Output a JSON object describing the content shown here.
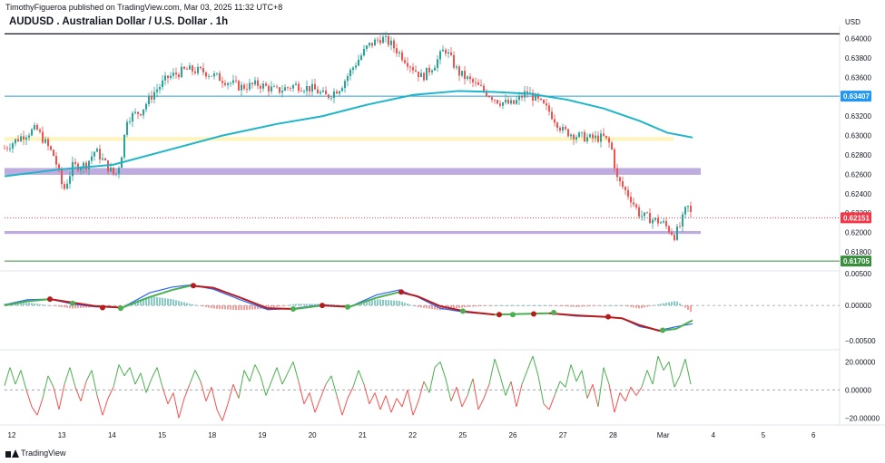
{
  "header": {
    "published_by": "TimothyFigueroa published on TradingView.com, Mar 03, 2025 11:32 UTC+8"
  },
  "title": "AUDUSD . Australian Dollar / U.S. Dollar . 1h",
  "currency_label": "USD",
  "footer": {
    "brand": "TradingView"
  },
  "colors": {
    "up": "#26a69a",
    "down": "#ef5350",
    "ma": "#1eb5c9",
    "blue_line": "#2d9fd8",
    "yellow_zone": "#fff3b0",
    "purple_zone": "#b39ddb",
    "green_line": "#4caf50",
    "macd_fast": "#2962ff",
    "signal_up": "#4caf50",
    "signal_down": "#b71c1c",
    "osc_up": "#4caf50",
    "osc_down": "#ef5350",
    "badge_blue": "#2196f3",
    "badge_red": "#f23645",
    "badge_green": "#388e3c"
  },
  "chart_data": [
    {
      "type": "candlestick",
      "pane": "price",
      "y_axis_ticks": [
        0.64,
        0.638,
        0.636,
        0.634,
        0.632,
        0.63,
        0.628,
        0.626,
        0.624,
        0.622,
        0.62,
        0.618
      ],
      "ylim": [
        0.6165,
        0.641
      ],
      "x_axis_ticks": [
        "12",
        "13",
        "14",
        "15",
        "18",
        "19",
        "20",
        "21",
        "22",
        "25",
        "26",
        "27",
        "28",
        "Mar",
        "4",
        "5",
        "6"
      ],
      "close_path": [
        [
          0,
          0.6287
        ],
        [
          20,
          0.63
        ],
        [
          35,
          0.6307
        ],
        [
          55,
          0.6278
        ],
        [
          65,
          0.6243
        ],
        [
          75,
          0.6268
        ],
        [
          90,
          0.627
        ],
        [
          100,
          0.6285
        ],
        [
          115,
          0.6266
        ],
        [
          122,
          0.6258
        ],
        [
          128,
          0.6275
        ],
        [
          135,
          0.6318
        ],
        [
          150,
          0.6325
        ],
        [
          165,
          0.6345
        ],
        [
          180,
          0.636
        ],
        [
          200,
          0.6368
        ],
        [
          220,
          0.6366
        ],
        [
          240,
          0.6358
        ],
        [
          260,
          0.635
        ],
        [
          280,
          0.6353
        ],
        [
          300,
          0.6346
        ],
        [
          320,
          0.6352
        ],
        [
          340,
          0.6348
        ],
        [
          355,
          0.634
        ],
        [
          370,
          0.635
        ],
        [
          385,
          0.6372
        ],
        [
          400,
          0.6392
        ],
        [
          415,
          0.6401
        ],
        [
          425,
          0.6395
        ],
        [
          440,
          0.638
        ],
        [
          460,
          0.636
        ],
        [
          475,
          0.6375
        ],
        [
          485,
          0.639
        ],
        [
          500,
          0.6365
        ],
        [
          515,
          0.6355
        ],
        [
          530,
          0.6345
        ],
        [
          545,
          0.6335
        ],
        [
          560,
          0.6332
        ],
        [
          575,
          0.6345
        ],
        [
          585,
          0.6338
        ],
        [
          600,
          0.6325
        ],
        [
          615,
          0.6305
        ],
        [
          630,
          0.63
        ],
        [
          645,
          0.6297
        ],
        [
          660,
          0.6298
        ],
        [
          668,
          0.629
        ],
        [
          675,
          0.6255
        ],
        [
          690,
          0.6235
        ],
        [
          700,
          0.6218
        ],
        [
          715,
          0.6213
        ],
        [
          725,
          0.621
        ],
        [
          738,
          0.6197
        ],
        [
          745,
          0.6208
        ],
        [
          752,
          0.6228
        ],
        [
          758,
          0.6215
        ]
      ],
      "moving_average": [
        [
          0,
          0.6258
        ],
        [
          60,
          0.6265
        ],
        [
          120,
          0.627
        ],
        [
          180,
          0.6285
        ],
        [
          240,
          0.63
        ],
        [
          300,
          0.6312
        ],
        [
          350,
          0.632
        ],
        [
          400,
          0.6332
        ],
        [
          450,
          0.6342
        ],
        [
          500,
          0.6346
        ],
        [
          540,
          0.6345
        ],
        [
          580,
          0.6343
        ],
        [
          620,
          0.6337
        ],
        [
          660,
          0.6328
        ],
        [
          700,
          0.6315
        ],
        [
          730,
          0.6303
        ],
        [
          758,
          0.6298
        ]
      ],
      "levels": [
        {
          "name": "resistance-line",
          "value": 0.63407,
          "label": "0.63407",
          "color": "#2d9fd8"
        },
        {
          "name": "current-price-line",
          "value": 0.62151,
          "label": "0.62151",
          "color": "#f23645"
        },
        {
          "name": "support-line",
          "value": 0.61705,
          "label": "0.61705",
          "color": "#388e3c"
        },
        {
          "name": "top-line",
          "value": 0.6405,
          "label": "",
          "color": "#131722"
        }
      ],
      "zones": [
        {
          "name": "yellow-zone",
          "from": 0.62945,
          "to": 0.62985,
          "color": "#fff3b0"
        },
        {
          "name": "purple-zone-upper",
          "from": 0.62595,
          "to": 0.62665,
          "color": "#b39ddb"
        },
        {
          "name": "purple-zone-lower",
          "from": 0.61985,
          "to": 0.62015,
          "color": "#b39ddb"
        }
      ]
    },
    {
      "type": "line",
      "pane": "macd",
      "y_axis_ticks": [
        0.0,
        -0.005
      ],
      "y_axis_labels": [
        "0.00000",
        "−0.00500"
      ],
      "top_partial_label": "0.00500",
      "ylim": [
        -0.006,
        0.0045
      ],
      "fast": [
        [
          0,
          0.0001
        ],
        [
          25,
          0.0008
        ],
        [
          50,
          0.0009
        ],
        [
          75,
          0.0002
        ],
        [
          100,
          -0.0002
        ],
        [
          130,
          -0.0003
        ],
        [
          160,
          0.0018
        ],
        [
          185,
          0.0026
        ],
        [
          205,
          0.0029
        ],
        [
          230,
          0.0023
        ],
        [
          260,
          0.0008
        ],
        [
          290,
          -0.0006
        ],
        [
          320,
          -0.0004
        ],
        [
          350,
          0.0001
        ],
        [
          380,
          -0.0002
        ],
        [
          410,
          0.0015
        ],
        [
          435,
          0.0022
        ],
        [
          455,
          0.0012
        ],
        [
          480,
          -0.0004
        ],
        [
          510,
          -0.001
        ],
        [
          540,
          -0.0013
        ],
        [
          570,
          -0.0012
        ],
        [
          600,
          -0.0011
        ],
        [
          630,
          -0.0015
        ],
        [
          660,
          -0.0016
        ],
        [
          680,
          -0.0018
        ],
        [
          700,
          -0.003
        ],
        [
          722,
          -0.0035
        ],
        [
          740,
          -0.003
        ],
        [
          758,
          -0.0026
        ]
      ],
      "signal": [
        [
          0,
          0.0
        ],
        [
          25,
          0.0006
        ],
        [
          50,
          0.0009
        ],
        [
          75,
          0.0004
        ],
        [
          100,
          -0.0001
        ],
        [
          130,
          -0.0003
        ],
        [
          160,
          0.0012
        ],
        [
          185,
          0.0022
        ],
        [
          205,
          0.0028
        ],
        [
          230,
          0.0025
        ],
        [
          260,
          0.0011
        ],
        [
          290,
          -0.0004
        ],
        [
          320,
          -0.0005
        ],
        [
          350,
          0.0
        ],
        [
          380,
          -0.0002
        ],
        [
          410,
          0.0011
        ],
        [
          435,
          0.0019
        ],
        [
          455,
          0.0013
        ],
        [
          480,
          -0.0001
        ],
        [
          510,
          -0.0009
        ],
        [
          540,
          -0.0013
        ],
        [
          570,
          -0.0012
        ],
        [
          600,
          -0.0011
        ],
        [
          630,
          -0.0014
        ],
        [
          660,
          -0.0016
        ],
        [
          680,
          -0.0018
        ],
        [
          700,
          -0.0028
        ],
        [
          722,
          -0.0036
        ],
        [
          740,
          -0.0033
        ],
        [
          758,
          -0.0021
        ]
      ],
      "cross_points": [
        [
          50,
          0.0009
        ],
        [
          75,
          0.0003
        ],
        [
          108,
          -0.0003
        ],
        [
          128,
          -0.0004
        ],
        [
          208,
          0.0028
        ],
        [
          318,
          -0.0005
        ],
        [
          350,
          0.0
        ],
        [
          378,
          -0.0002
        ],
        [
          437,
          0.0019
        ],
        [
          505,
          -0.0008
        ],
        [
          545,
          -0.0013
        ],
        [
          560,
          -0.0013
        ],
        [
          583,
          -0.0012
        ],
        [
          605,
          -0.001
        ],
        [
          665,
          -0.0016
        ],
        [
          725,
          -0.0035
        ]
      ]
    },
    {
      "type": "line",
      "pane": "oscillator",
      "y_axis_ticks": [
        20.0,
        0.0,
        -20.0
      ],
      "y_axis_labels": [
        "20.00000",
        "0.00000",
        "−20.00000"
      ],
      "ylim": [
        -23,
        26
      ],
      "values": [
        [
          0,
          3
        ],
        [
          6,
          16
        ],
        [
          12,
          4
        ],
        [
          18,
          14
        ],
        [
          24,
          0
        ],
        [
          30,
          -12
        ],
        [
          36,
          -18
        ],
        [
          42,
          -6
        ],
        [
          48,
          10
        ],
        [
          54,
          2
        ],
        [
          60,
          -14
        ],
        [
          66,
          4
        ],
        [
          72,
          16
        ],
        [
          78,
          2
        ],
        [
          84,
          -8
        ],
        [
          90,
          6
        ],
        [
          96,
          14
        ],
        [
          102,
          -4
        ],
        [
          108,
          -18
        ],
        [
          114,
          -6
        ],
        [
          120,
          2
        ],
        [
          126,
          18
        ],
        [
          132,
          10
        ],
        [
          138,
          16
        ],
        [
          144,
          4
        ],
        [
          150,
          12
        ],
        [
          156,
          -2
        ],
        [
          162,
          8
        ],
        [
          168,
          16
        ],
        [
          174,
          2
        ],
        [
          180,
          -10
        ],
        [
          186,
          -2
        ],
        [
          192,
          -20
        ],
        [
          198,
          -6
        ],
        [
          204,
          4
        ],
        [
          210,
          14
        ],
        [
          216,
          6
        ],
        [
          222,
          -8
        ],
        [
          228,
          2
        ],
        [
          234,
          -14
        ],
        [
          240,
          -22
        ],
        [
          246,
          -10
        ],
        [
          252,
          4
        ],
        [
          258,
          -6
        ],
        [
          264,
          14
        ],
        [
          270,
          6
        ],
        [
          276,
          18
        ],
        [
          282,
          10
        ],
        [
          288,
          -4
        ],
        [
          294,
          6
        ],
        [
          300,
          16
        ],
        [
          306,
          4
        ],
        [
          312,
          12
        ],
        [
          318,
          20
        ],
        [
          324,
          6
        ],
        [
          330,
          -10
        ],
        [
          336,
          -2
        ],
        [
          342,
          -16
        ],
        [
          348,
          -6
        ],
        [
          354,
          4
        ],
        [
          360,
          10
        ],
        [
          366,
          -4
        ],
        [
          372,
          -18
        ],
        [
          378,
          -6
        ],
        [
          384,
          2
        ],
        [
          390,
          14
        ],
        [
          396,
          4
        ],
        [
          402,
          -10
        ],
        [
          408,
          -2
        ],
        [
          414,
          -14
        ],
        [
          420,
          -4
        ],
        [
          426,
          -16
        ],
        [
          432,
          -6
        ],
        [
          438,
          -12
        ],
        [
          444,
          0
        ],
        [
          450,
          -18
        ],
        [
          456,
          -8
        ],
        [
          462,
          6
        ],
        [
          468,
          -2
        ],
        [
          474,
          16
        ],
        [
          480,
          20
        ],
        [
          486,
          8
        ],
        [
          492,
          -8
        ],
        [
          498,
          2
        ],
        [
          504,
          -12
        ],
        [
          510,
          -4
        ],
        [
          516,
          8
        ],
        [
          522,
          -14
        ],
        [
          528,
          -6
        ],
        [
          534,
          4
        ],
        [
          540,
          22
        ],
        [
          546,
          10
        ],
        [
          552,
          -4
        ],
        [
          558,
          6
        ],
        [
          564,
          -12
        ],
        [
          570,
          4
        ],
        [
          576,
          14
        ],
        [
          582,
          24
        ],
        [
          588,
          10
        ],
        [
          594,
          -10
        ],
        [
          600,
          -14
        ],
        [
          606,
          -4
        ],
        [
          612,
          6
        ],
        [
          618,
          2
        ],
        [
          624,
          18
        ],
        [
          630,
          6
        ],
        [
          636,
          14
        ],
        [
          642,
          -6
        ],
        [
          648,
          4
        ],
        [
          654,
          -12
        ],
        [
          660,
          16
        ],
        [
          666,
          4
        ],
        [
          672,
          -16
        ],
        [
          678,
          -2
        ],
        [
          684,
          -8
        ],
        [
          690,
          2
        ],
        [
          696,
          -4
        ],
        [
          702,
          2
        ],
        [
          708,
          14
        ],
        [
          714,
          4
        ],
        [
          720,
          24
        ],
        [
          726,
          14
        ],
        [
          732,
          20
        ],
        [
          738,
          2
        ],
        [
          744,
          10
        ],
        [
          750,
          22
        ],
        [
          756,
          4
        ]
      ]
    }
  ]
}
